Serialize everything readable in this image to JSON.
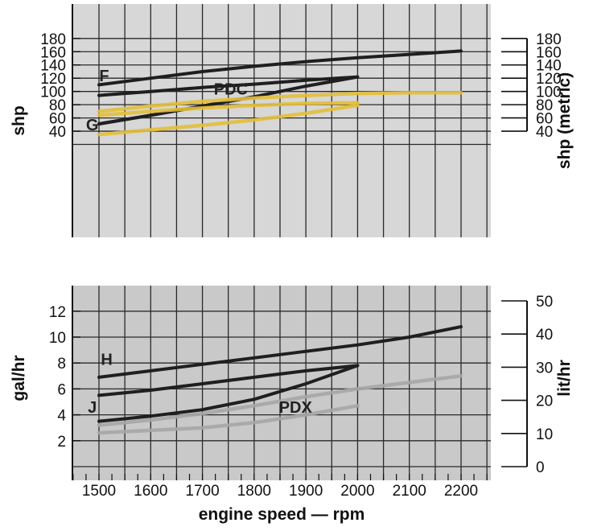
{
  "chart_data": [
    {
      "type": "line",
      "xlabel": "engine speed — rpm",
      "ylabel": "shp",
      "ylabel_right": "shp (metric)",
      "xlim": [
        1450,
        2250
      ],
      "ylim": [
        20,
        200
      ],
      "ylim_right": [
        20,
        200
      ],
      "x_ticks": [
        1500,
        1600,
        1700,
        1800,
        1900,
        2000,
        2100,
        2200
      ],
      "y_ticks": [
        40,
        60,
        80,
        100,
        120,
        140,
        160,
        180
      ],
      "y_ticks_right": [
        40,
        60,
        80,
        100,
        120,
        140,
        160,
        180
      ],
      "grid": true,
      "colors": {
        "background": "#d7d7d7",
        "grid": "#2a2a2a",
        "dark_line": "#1f1f1f",
        "yellow_line": "#e3bf3a"
      },
      "series": [
        {
          "name": "F",
          "color": "#1f1f1f",
          "x": [
            1500,
            1600,
            1700,
            1800,
            1900,
            2000,
            2100,
            2200
          ],
          "y": [
            110,
            120,
            130,
            138,
            145,
            151,
            156,
            161
          ]
        },
        {
          "name": "PDC",
          "color": "#1f1f1f",
          "x": [
            1500,
            1600,
            1700,
            1800,
            1900,
            2000,
            1900,
            1800,
            1700,
            1600,
            1500
          ],
          "y": [
            94,
            100,
            106,
            111,
            117,
            122,
            108,
            92,
            78,
            64,
            51
          ]
        },
        {
          "name": "G",
          "color": "#1f1f1f",
          "x": [
            1500,
            1600,
            1700,
            1800
          ],
          "y": [
            51,
            64,
            78,
            92
          ]
        },
        {
          "name": "",
          "color": "#e3bf3a",
          "x": [
            1500,
            1600,
            1700,
            1800,
            1900,
            2000,
            2100,
            2200
          ],
          "y": [
            70,
            78,
            85,
            90,
            94,
            97,
            98,
            98
          ]
        },
        {
          "name": "",
          "color": "#e3bf3a",
          "x": [
            1500,
            1600,
            1700,
            1800,
            1900,
            2000
          ],
          "y": [
            64,
            70,
            75,
            79,
            82,
            83
          ]
        },
        {
          "name": "",
          "color": "#e3bf3a",
          "x": [
            1500,
            1600,
            1700,
            1800,
            1900,
            2000
          ],
          "y": [
            35,
            42,
            49,
            57,
            67,
            79
          ]
        }
      ],
      "annotations": [
        {
          "text": "F",
          "x": 1510,
          "y": 124
        },
        {
          "text": "PDC",
          "x": 1755,
          "y": 104
        },
        {
          "text": "G",
          "x": 1487,
          "y": 50
        }
      ]
    },
    {
      "type": "line",
      "xlabel": "engine speed — rpm",
      "ylabel": "gal/hr",
      "ylabel_right": "lit/hr",
      "xlim": [
        1450,
        2250
      ],
      "ylim": [
        0,
        14
      ],
      "ylim_right": [
        0,
        53
      ],
      "x_ticks": [
        1500,
        1600,
        1700,
        1800,
        1900,
        2000,
        2100,
        2200
      ],
      "y_ticks": [
        2,
        4,
        6,
        8,
        10,
        12
      ],
      "y_ticks_right": [
        0,
        10,
        20,
        30,
        40,
        50
      ],
      "grid": true,
      "colors": {
        "background": "#c9c9c9",
        "grid": "#2a2a2a",
        "dark_line": "#1f1f1f",
        "grey_line": "#a6a6a6"
      },
      "series": [
        {
          "name": "H",
          "color": "#1f1f1f",
          "x": [
            1500,
            1600,
            1700,
            1800,
            1900,
            2000,
            2100,
            2200
          ],
          "y": [
            6.9,
            7.4,
            7.9,
            8.4,
            8.9,
            9.4,
            10.0,
            10.8
          ]
        },
        {
          "name": "J",
          "color": "#1f1f1f",
          "x": [
            1500,
            1600,
            1700,
            1800,
            1900,
            2000
          ],
          "y": [
            5.5,
            5.9,
            6.4,
            6.9,
            7.4,
            7.8
          ]
        },
        {
          "name": "PDX",
          "color": "#1f1f1f",
          "x": [
            1500,
            1600,
            1700,
            1800,
            1900,
            2000
          ],
          "y": [
            3.5,
            3.9,
            4.4,
            5.2,
            6.4,
            7.8
          ]
        },
        {
          "name": "",
          "color": "#a6a6a6",
          "x": [
            1500,
            1600,
            1700,
            1800,
            1900,
            2000,
            2100,
            2200
          ],
          "y": [
            3.2,
            3.6,
            4.1,
            4.7,
            5.4,
            6.0,
            6.5,
            7.0
          ]
        },
        {
          "name": "",
          "color": "#a6a6a6",
          "x": [
            1500,
            1600,
            1700,
            1800,
            1900,
            2000
          ],
          "y": [
            2.6,
            2.8,
            3.0,
            3.4,
            4.0,
            4.7
          ]
        }
      ],
      "annotations": [
        {
          "text": "H",
          "x": 1515,
          "y": 8.3
        },
        {
          "text": "J",
          "x": 1487,
          "y": 4.6
        },
        {
          "text": "PDX",
          "x": 1880,
          "y": 4.6
        }
      ]
    }
  ]
}
